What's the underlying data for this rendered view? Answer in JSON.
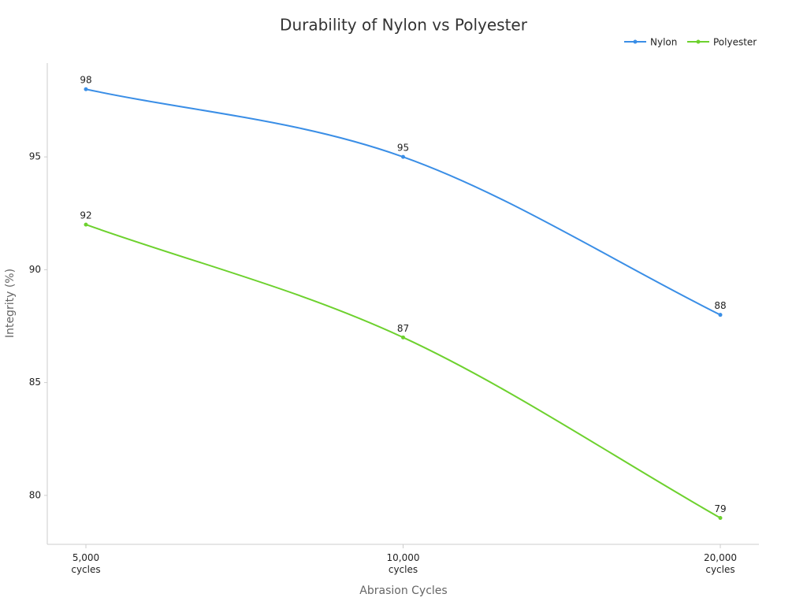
{
  "chart_data": {
    "type": "line",
    "title": "Durability of Nylon vs Polyester",
    "x_label": "Abrasion Cycles",
    "y_label": "Integrity (%)",
    "categories": [
      "5,000 cycles",
      "10,000 cycles",
      "20,000 cycles"
    ],
    "series": [
      {
        "name": "Nylon",
        "color": "#3a8ee6",
        "values": [
          98,
          95,
          88
        ]
      },
      {
        "name": "Polyester",
        "color": "#6dd12e",
        "values": [
          92,
          87,
          79
        ]
      }
    ],
    "ylim": [
      77.83,
      99.16
    ],
    "yticks": [
      80,
      85,
      90,
      95
    ],
    "grid": false,
    "legend": "top-right"
  }
}
